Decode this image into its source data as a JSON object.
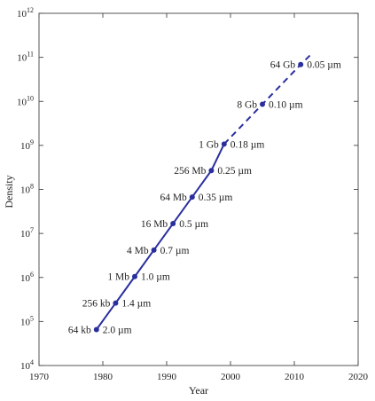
{
  "chart_data": {
    "type": "line",
    "xlabel": "Year",
    "ylabel": "Density",
    "xlim": [
      1970,
      2020
    ],
    "ylim": [
      10000,
      1000000000000
    ],
    "y_scale": "log",
    "grid": false,
    "x_ticks": [
      "1970",
      "1980",
      "1990",
      "2000",
      "2010",
      "2020"
    ],
    "y_ticks": [
      {
        "base": "10",
        "exp": "4"
      },
      {
        "base": "10",
        "exp": "5"
      },
      {
        "base": "10",
        "exp": "6"
      },
      {
        "base": "10",
        "exp": "7"
      },
      {
        "base": "10",
        "exp": "8"
      },
      {
        "base": "10",
        "exp": "9"
      },
      {
        "base": "10",
        "exp": "10"
      },
      {
        "base": "10",
        "exp": "11"
      },
      {
        "base": "10",
        "exp": "12"
      }
    ],
    "series_color": "#2a2f9e",
    "points": [
      {
        "x": 1979,
        "y": 65536,
        "capacity": "64 kb",
        "feature": "2.0 µm",
        "projected": false
      },
      {
        "x": 1982,
        "y": 262144,
        "capacity": "256 kb",
        "feature": "1.4 µm",
        "projected": false
      },
      {
        "x": 1985,
        "y": 1048576,
        "capacity": "1 Mb",
        "feature": "1.0 µm",
        "projected": false
      },
      {
        "x": 1988,
        "y": 4194304,
        "capacity": "4 Mb",
        "feature": "0.7 µm",
        "projected": false
      },
      {
        "x": 1991,
        "y": 16777216,
        "capacity": "16 Mb",
        "feature": "0.5 µm",
        "projected": false
      },
      {
        "x": 1994,
        "y": 67108864,
        "capacity": "64 Mb",
        "feature": "0.35 µm",
        "projected": false
      },
      {
        "x": 1997,
        "y": 268435456,
        "capacity": "256 Mb",
        "feature": "0.25 µm",
        "projected": false
      },
      {
        "x": 1999,
        "y": 1073741824,
        "capacity": "1 Gb",
        "feature": "0.18 µm",
        "projected": false
      },
      {
        "x": 2005,
        "y": 8589934592,
        "capacity": "8 Gb",
        "feature": "0.10 µm",
        "projected": true
      },
      {
        "x": 2011,
        "y": 68719476736,
        "capacity": "64 Gb",
        "feature": "0.05 µm",
        "projected": true
      }
    ],
    "projection_end": {
      "x": 2012.7,
      "y": 120000000000
    }
  }
}
